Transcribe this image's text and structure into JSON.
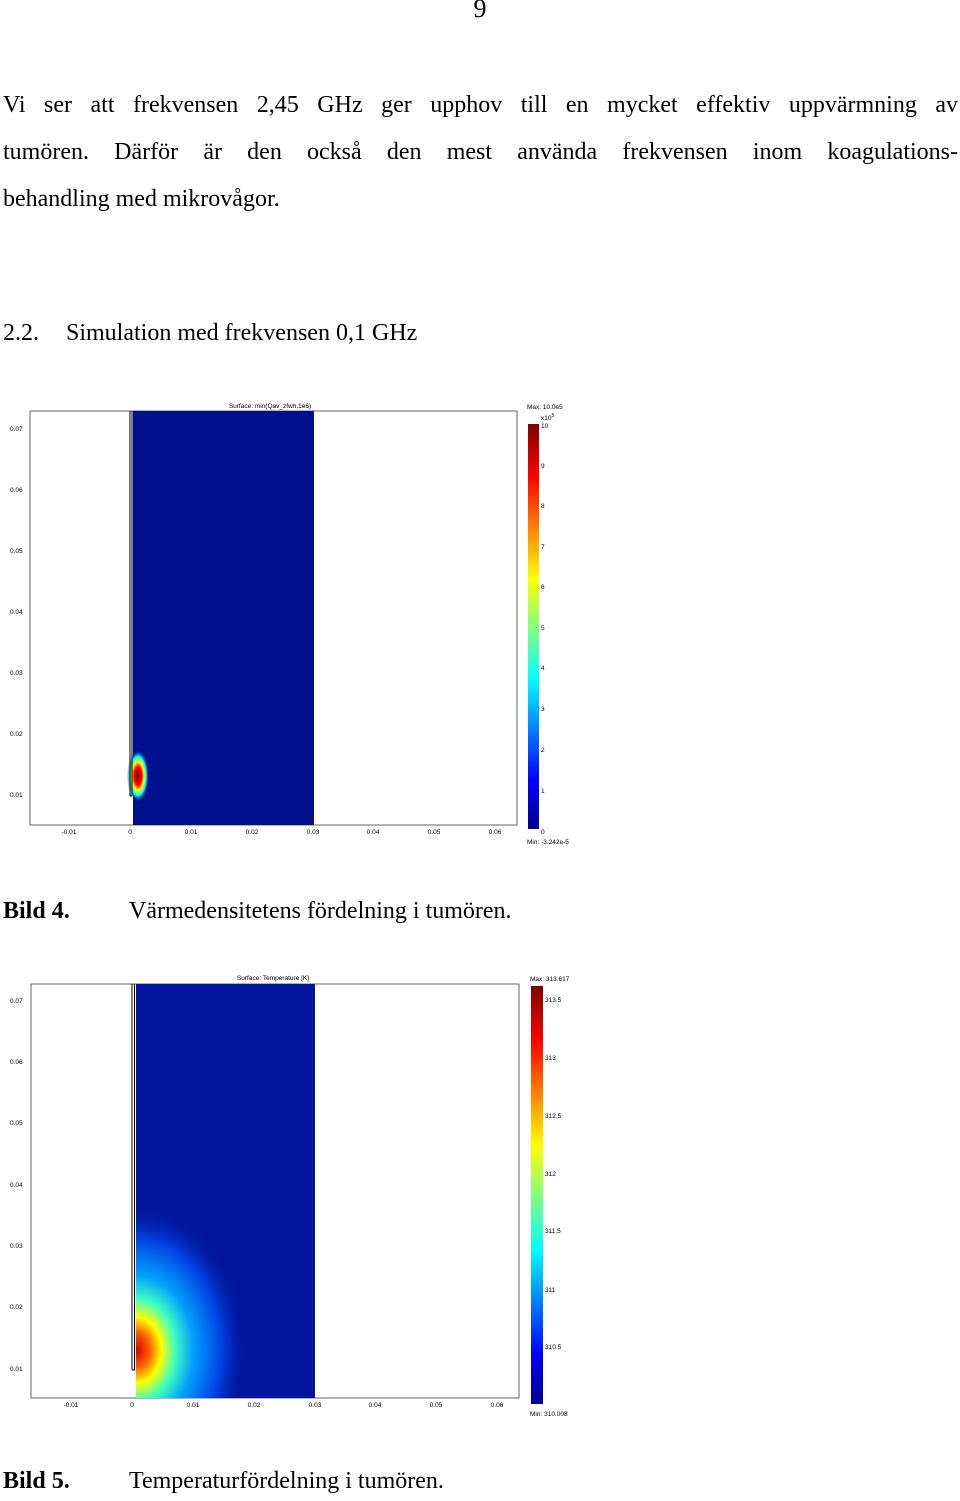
{
  "page_number": "9",
  "paragraph": {
    "lines": [
      "Vi ser att frekvensen 2,45 GHz ger upphov till en mycket effektiv uppvärmning av",
      "tumören. Därför är den också den mest använda frekvensen inom koagulations-",
      "behandling med mikrovågor."
    ]
  },
  "section": {
    "number": "2.2.",
    "title": "Simulation med frekvensen 0,1 GHz"
  },
  "figure4": {
    "title": "Surface: min(Qav_zfwh,1e6)",
    "y_ticks": [
      "0.07",
      "0.06",
      "0.05",
      "0.04",
      "0.03",
      "0.02",
      "0.01"
    ],
    "x_ticks": [
      "-0.01",
      "0",
      "0.01",
      "0.02",
      "0.03",
      "0.04",
      "0.05",
      "0.06"
    ],
    "colorbar": {
      "max_label": "Max: 10.0e5",
      "min_label": "Min: -3.242e-5",
      "multiplier": "x10",
      "multiplier_exp": "5",
      "ticks": [
        "10",
        "9",
        "8",
        "7",
        "6",
        "5",
        "4",
        "3",
        "2",
        "1",
        "0"
      ]
    },
    "caption_label": "Bild 4.",
    "caption_text": "Värmedensitetens fördelning i tumören."
  },
  "figure5": {
    "title": "Surface: Temperature [K]",
    "y_ticks": [
      "0.07",
      "0.06",
      "0.05",
      "0.04",
      "0.03",
      "0.02",
      "0.01"
    ],
    "x_ticks": [
      "-0.01",
      "0",
      "0.01",
      "0.02",
      "0.03",
      "0.04",
      "0.05",
      "0.06"
    ],
    "colorbar": {
      "max_label": "Max: 313.617",
      "min_label": "Min: 310.008",
      "ticks": [
        "313.5",
        "313",
        "312.5",
        "312",
        "311.5",
        "311",
        "310.5"
      ]
    },
    "caption_label": "Bild 5.",
    "caption_text": "Temperaturfördelning i tumören."
  },
  "colors": {
    "domain_fill": "#00108c",
    "jet": [
      "#00008f",
      "#0000ff",
      "#00ffff",
      "#ffff00",
      "#ff0000",
      "#800000"
    ]
  }
}
